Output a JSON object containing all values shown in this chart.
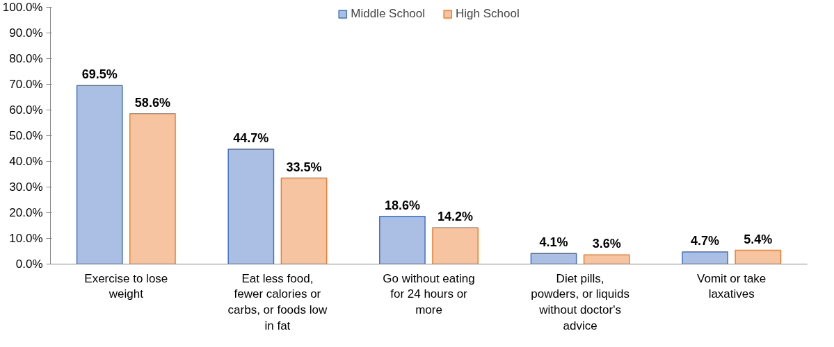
{
  "chart_data": {
    "type": "bar",
    "categories": [
      "Exercise to lose weight",
      "Eat less food, fewer calories or carbs, or foods low in fat",
      "Go without eating for 24 hours or more",
      "Diet pills, powders, or liquids without doctor's advice",
      "Vomit or take laxatives"
    ],
    "series": [
      {
        "name": "Middle School",
        "color": "#4472c4",
        "values": [
          69.5,
          44.7,
          18.6,
          4.1,
          4.7
        ],
        "value_labels": [
          "69.5%",
          "44.7%",
          "18.6%",
          "4.1%",
          "4.7%"
        ]
      },
      {
        "name": "High School",
        "color": "#ed7d31",
        "values": [
          58.6,
          33.5,
          14.2,
          3.6,
          5.4
        ],
        "value_labels": [
          "58.6%",
          "33.5%",
          "14.2%",
          "3.6%",
          "5.4%"
        ]
      }
    ],
    "ylim": [
      0,
      100
    ],
    "yticks": [
      {
        "value": 0,
        "label": "0.0%"
      },
      {
        "value": 10,
        "label": "10.0%"
      },
      {
        "value": 20,
        "label": "20.0%"
      },
      {
        "value": 30,
        "label": "30.0%"
      },
      {
        "value": 40,
        "label": "40.0%"
      },
      {
        "value": 50,
        "label": "50.0%"
      },
      {
        "value": 60,
        "label": "60.0%"
      },
      {
        "value": 70,
        "label": "70.0%"
      },
      {
        "value": 80,
        "label": "80.0%"
      },
      {
        "value": 90,
        "label": "90.0%"
      },
      {
        "value": 100,
        "label": "100.0%"
      }
    ],
    "grid": false,
    "legend": "top"
  }
}
